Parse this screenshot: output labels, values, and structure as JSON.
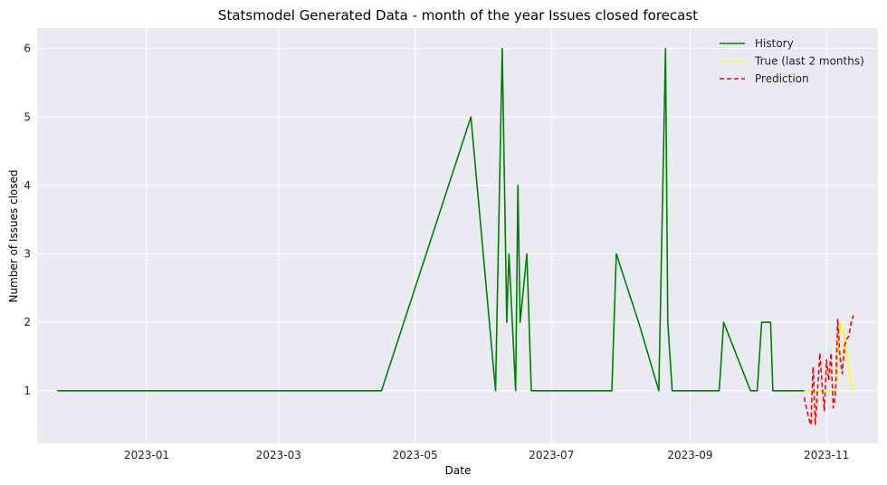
{
  "chart_data": {
    "type": "line",
    "title": "Statsmodel Generated Data - month of the year Issues closed forecast",
    "xlabel": "Date",
    "ylabel": "Number of Issues closed",
    "xlim": [
      "2023-11-13",
      "2023-11-24"
    ],
    "ylim": [
      0.23,
      6.3
    ],
    "x_ticks": [
      "2023-01",
      "2023-03",
      "2023-05",
      "2023-07",
      "2023-09",
      "2023-11"
    ],
    "y_ticks": [
      1,
      2,
      3,
      4,
      5,
      6
    ],
    "grid": true,
    "legend_position": "top-right",
    "series": [
      {
        "name": "History",
        "color": "#008000",
        "style": "solid",
        "x": [
          "2022-11-22",
          "2023-04-16",
          "2023-05-26",
          "2023-06-06",
          "2023-06-09",
          "2023-06-11",
          "2023-06-12",
          "2023-06-15",
          "2023-06-16",
          "2023-06-17",
          "2023-06-20",
          "2023-06-22",
          "2023-07-28",
          "2023-07-30",
          "2023-08-09",
          "2023-08-18",
          "2023-08-21",
          "2023-08-22",
          "2023-08-24",
          "2023-09-14",
          "2023-09-16",
          "2023-09-28",
          "2023-10-01",
          "2023-10-03",
          "2023-10-07",
          "2023-10-08",
          "2023-10-11",
          "2023-10-22"
        ],
        "y": [
          1,
          1,
          5,
          1,
          6,
          2,
          3,
          1,
          4,
          2,
          3,
          1,
          1,
          3,
          2,
          1,
          6,
          2,
          1,
          1,
          2,
          1,
          1,
          2,
          2,
          1,
          1,
          1
        ]
      },
      {
        "name": "True (last 2 months)",
        "color": "#ffff00",
        "style": "solid",
        "x": [
          "2023-10-22",
          "2023-10-25",
          "2023-10-28",
          "2023-10-31",
          "2023-11-03",
          "2023-11-05",
          "2023-11-07",
          "2023-11-09",
          "2023-11-11",
          "2023-11-13"
        ],
        "y": [
          1,
          1,
          1,
          1,
          1,
          1,
          2,
          1.8,
          1.3,
          1
        ]
      },
      {
        "name": "Prediction",
        "color": "#ff0000",
        "style": "dashed",
        "x": [
          "2023-10-22",
          "2023-10-24",
          "2023-10-25",
          "2023-10-26",
          "2023-10-27",
          "2023-10-29",
          "2023-10-30",
          "2023-10-31",
          "2023-11-01",
          "2023-11-02",
          "2023-11-03",
          "2023-11-04",
          "2023-11-05",
          "2023-11-06",
          "2023-11-07",
          "2023-11-08",
          "2023-11-09",
          "2023-11-10",
          "2023-11-11",
          "2023-11-12",
          "2023-11-13"
        ],
        "y": [
          0.9,
          0.6,
          0.5,
          1.35,
          0.5,
          1.55,
          1.1,
          0.7,
          1.45,
          1.15,
          1.55,
          0.75,
          0.95,
          2.05,
          1.5,
          1.25,
          1.65,
          1.75,
          1.8,
          2.0,
          2.1
        ]
      }
    ]
  }
}
